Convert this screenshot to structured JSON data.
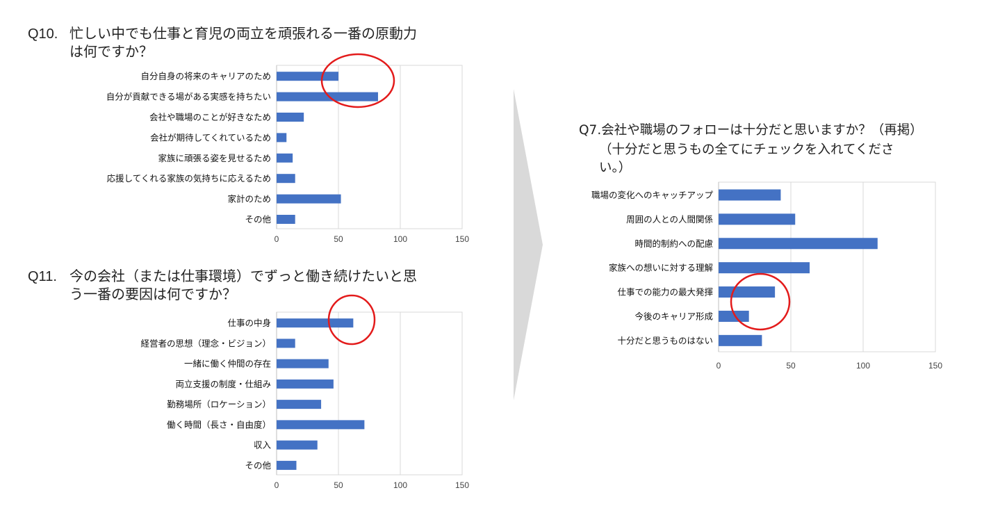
{
  "q10": {
    "number": "Q10.",
    "line1": "忙しい中でも仕事と育児の両立を頑張れる一番の原動力",
    "line2": "は何ですか？"
  },
  "q11": {
    "number": "Q11.",
    "line1": "今の会社（または仕事環境）でずっと働き続けたいと思",
    "line2": "う一番の要因は何ですか？"
  },
  "q7": {
    "line1": "Q7.会社や職場のフォローは十分だと思いますか？（再掲）",
    "line2": "（十分だと思うもの全てにチェックを入れてくださ",
    "line3": "い。）"
  },
  "colors": {
    "bar": "#4472C4",
    "highlight": "#E31B1B",
    "grid": "#D9D9D9",
    "divider": "#D9D9D9"
  },
  "chart_data": [
    {
      "id": "q10",
      "type": "bar",
      "orientation": "horizontal",
      "categories": [
        "自分自身の将来のキャリアのため",
        "自分が貢献できる場がある実感を持ちたい",
        "会社や職場のことが好きなため",
        "会社が期待してくれているため",
        "家族に頑張る姿を見せるため",
        "応援してくれる家族の気持ちに応えるため",
        "家計のため",
        "その他"
      ],
      "values": [
        50,
        82,
        22,
        8,
        13,
        15,
        52,
        15
      ],
      "xlim": [
        0,
        150
      ],
      "ticks": [
        0,
        50,
        100,
        150
      ],
      "grid": true,
      "highlight": "circle around top two bars"
    },
    {
      "id": "q11",
      "type": "bar",
      "orientation": "horizontal",
      "categories": [
        "仕事の中身",
        "経営者の思想（理念・ビジョン）",
        "一緒に働く仲間の存在",
        "両立支援の制度・仕組み",
        "勤務場所（ロケーション）",
        "働く時間（長さ・自由度）",
        "収入",
        "その他"
      ],
      "values": [
        62,
        15,
        42,
        46,
        36,
        71,
        33,
        16
      ],
      "xlim": [
        0,
        150
      ],
      "ticks": [
        0,
        50,
        100,
        150
      ],
      "grid": true,
      "highlight": "circle around first bar end"
    },
    {
      "id": "q7",
      "type": "bar",
      "orientation": "horizontal",
      "categories": [
        "職場の変化へのキャッチアップ",
        "周囲の人との人間関係",
        "時間的制約への配慮",
        "家族への想いに対する理解",
        "仕事での能力の最大発揮",
        "今後のキャリア形成",
        "十分だと思うものはない"
      ],
      "values": [
        43,
        53,
        110,
        63,
        39,
        21,
        30
      ],
      "xlim": [
        0,
        150
      ],
      "ticks": [
        0,
        50,
        100,
        150
      ],
      "grid": true,
      "highlight": "circle around fifth and sixth bars"
    }
  ]
}
